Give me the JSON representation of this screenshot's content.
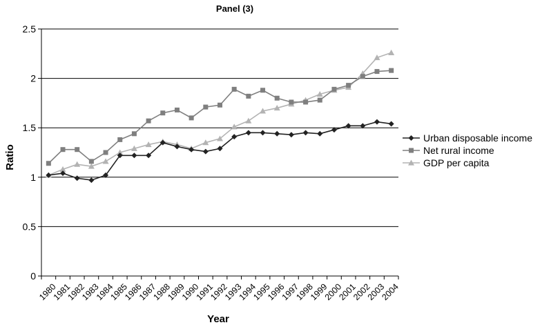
{
  "chart_data": {
    "type": "line",
    "title": "Panel (3)",
    "xlabel": "Year",
    "ylabel": "Ratio",
    "ylim": [
      0,
      2.5
    ],
    "yticks": [
      "0",
      "0.5",
      "1",
      "1.5",
      "2",
      "2.5"
    ],
    "grid": true,
    "legend_position": "right",
    "categories": [
      "1980",
      "1981",
      "1982",
      "1983",
      "1984",
      "1985",
      "1986",
      "1987",
      "1988",
      "1989",
      "1990",
      "1991",
      "1992",
      "1993",
      "1994",
      "1995",
      "1996",
      "1997",
      "1998",
      "1999",
      "2000",
      "2001",
      "2002",
      "2003",
      "2004"
    ],
    "series": [
      {
        "name": "Urban disposable income",
        "marker": "diamond",
        "color": "#222222",
        "values": [
          1.02,
          1.04,
          0.99,
          0.97,
          1.02,
          1.22,
          1.22,
          1.22,
          1.35,
          1.31,
          1.28,
          1.26,
          1.29,
          1.41,
          1.45,
          1.45,
          1.44,
          1.43,
          1.45,
          1.44,
          1.48,
          1.52,
          1.52,
          1.56,
          1.54
        ]
      },
      {
        "name": "Net rural income",
        "marker": "square",
        "color": "#7f7f7f",
        "values": [
          1.14,
          1.28,
          1.28,
          1.16,
          1.25,
          1.38,
          1.44,
          1.57,
          1.65,
          1.68,
          1.6,
          1.71,
          1.73,
          1.89,
          1.82,
          1.88,
          1.8,
          1.76,
          1.76,
          1.78,
          1.89,
          1.93,
          2.02,
          2.07,
          2.08
        ]
      },
      {
        "name": "GDP per capita",
        "marker": "triangle",
        "color": "#b3b3b3",
        "values": [
          1.02,
          1.08,
          1.13,
          1.11,
          1.16,
          1.25,
          1.29,
          1.33,
          1.36,
          1.33,
          1.29,
          1.35,
          1.39,
          1.51,
          1.57,
          1.67,
          1.7,
          1.74,
          1.78,
          1.84,
          1.88,
          1.91,
          2.05,
          2.21,
          2.26
        ]
      }
    ]
  }
}
